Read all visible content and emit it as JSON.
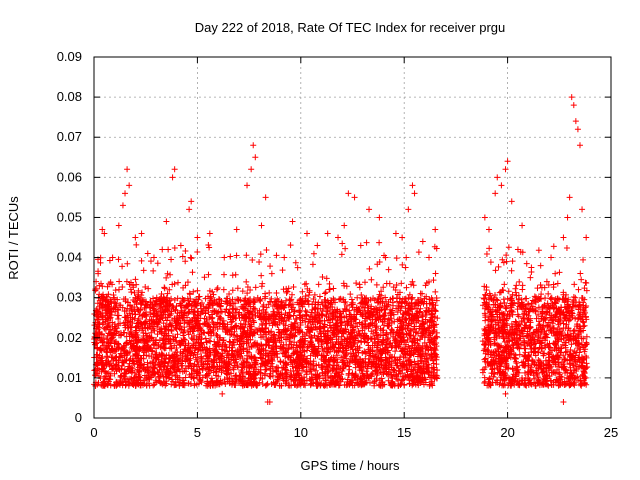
{
  "chart_data": {
    "type": "scatter",
    "title": "Day 222 of 2018, Rate Of TEC Index for receiver prgu",
    "xlabel": "GPS time / hours",
    "ylabel": "ROTI / TECUs",
    "xlim": [
      0,
      25
    ],
    "ylim": [
      0,
      0.09
    ],
    "x_ticks": [
      0,
      5,
      10,
      15,
      20,
      25
    ],
    "x_tick_labels": [
      "0",
      "5",
      "10",
      "15",
      "20",
      "25"
    ],
    "y_ticks": [
      0,
      0.01,
      0.02,
      0.03,
      0.04,
      0.05,
      0.06,
      0.07,
      0.08,
      0.09
    ],
    "y_tick_labels": [
      "0",
      "0.01",
      "0.02",
      "0.03",
      "0.04",
      "0.05",
      "0.06",
      "0.07",
      "0.08",
      "0.09"
    ],
    "grid": true,
    "marker": "plus",
    "color": "#ff0000",
    "data_segments": [
      {
        "x_start": 0.0,
        "x_end": 16.6
      },
      {
        "x_start": 18.8,
        "x_end": 23.85
      }
    ],
    "series": [
      {
        "points": [
          [
            0.1,
            0.034
          ],
          [
            0.2,
            0.036
          ],
          [
            0.4,
            0.047
          ],
          [
            0.5,
            0.046
          ],
          [
            0.9,
            0.04
          ],
          [
            1.2,
            0.048
          ],
          [
            1.4,
            0.053
          ],
          [
            1.5,
            0.056
          ],
          [
            1.6,
            0.062
          ],
          [
            1.7,
            0.058
          ],
          [
            2.0,
            0.045
          ],
          [
            2.3,
            0.046
          ],
          [
            2.6,
            0.041
          ],
          [
            2.9,
            0.04
          ],
          [
            3.3,
            0.042
          ],
          [
            3.5,
            0.049
          ],
          [
            3.8,
            0.06
          ],
          [
            3.9,
            0.062
          ],
          [
            4.2,
            0.043
          ],
          [
            4.6,
            0.052
          ],
          [
            4.7,
            0.054
          ],
          [
            5.0,
            0.045
          ],
          [
            5.6,
            0.046
          ],
          [
            6.3,
            0.04
          ],
          [
            6.9,
            0.047
          ],
          [
            7.4,
            0.058
          ],
          [
            7.6,
            0.062
          ],
          [
            7.7,
            0.068
          ],
          [
            7.8,
            0.065
          ],
          [
            8.1,
            0.048
          ],
          [
            8.3,
            0.055
          ],
          [
            8.6,
            0.036
          ],
          [
            9.2,
            0.04
          ],
          [
            9.6,
            0.049
          ],
          [
            10.3,
            0.046
          ],
          [
            10.8,
            0.043
          ],
          [
            11.3,
            0.046
          ],
          [
            11.8,
            0.045
          ],
          [
            12.1,
            0.048
          ],
          [
            12.3,
            0.056
          ],
          [
            12.6,
            0.055
          ],
          [
            12.9,
            0.043
          ],
          [
            13.3,
            0.052
          ],
          [
            13.8,
            0.05
          ],
          [
            14.1,
            0.04
          ],
          [
            14.6,
            0.046
          ],
          [
            14.9,
            0.045
          ],
          [
            15.2,
            0.052
          ],
          [
            15.4,
            0.058
          ],
          [
            15.5,
            0.056
          ],
          [
            15.9,
            0.044
          ],
          [
            16.2,
            0.04
          ],
          [
            16.5,
            0.047
          ],
          [
            18.9,
            0.05
          ],
          [
            19.1,
            0.047
          ],
          [
            19.4,
            0.056
          ],
          [
            19.5,
            0.06
          ],
          [
            19.7,
            0.058
          ],
          [
            19.9,
            0.062
          ],
          [
            20.0,
            0.064
          ],
          [
            20.2,
            0.054
          ],
          [
            20.5,
            0.042
          ],
          [
            20.7,
            0.048
          ],
          [
            21.1,
            0.035
          ],
          [
            21.6,
            0.038
          ],
          [
            21.9,
            0.034
          ],
          [
            22.1,
            0.04
          ],
          [
            22.3,
            0.036
          ],
          [
            22.7,
            0.045
          ],
          [
            22.9,
            0.05
          ],
          [
            23.0,
            0.055
          ],
          [
            23.1,
            0.08
          ],
          [
            23.2,
            0.078
          ],
          [
            23.3,
            0.074
          ],
          [
            23.4,
            0.072
          ],
          [
            23.5,
            0.068
          ],
          [
            23.6,
            0.052
          ],
          [
            23.8,
            0.045
          ],
          [
            8.4,
            0.004
          ],
          [
            8.5,
            0.004
          ],
          [
            22.7,
            0.004
          ],
          [
            19.9,
            0.006
          ],
          [
            6.2,
            0.006
          ]
        ]
      }
    ]
  }
}
